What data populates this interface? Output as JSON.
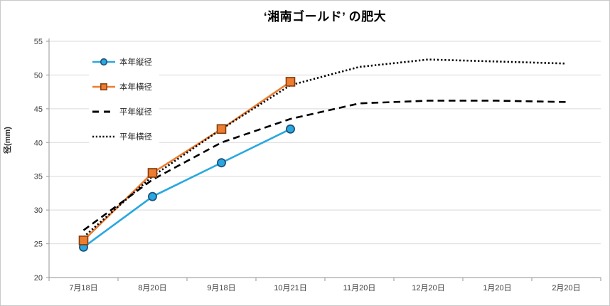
{
  "chart_data": {
    "type": "line",
    "title": "‘湘南ゴールド’ の肥大",
    "xlabel": "",
    "ylabel": "径(mm)",
    "ylim": [
      20,
      55
    ],
    "yticks": [
      20,
      25,
      30,
      35,
      40,
      45,
      50,
      55
    ],
    "grid": true,
    "legend_position": "upper-left-inside",
    "categories": [
      "7月18日",
      "8月20日",
      "9月18日",
      "10月21日",
      "11月20日",
      "12月20日",
      "1月20日",
      "2月20日"
    ],
    "series": [
      {
        "name": "本年縦径",
        "line_style": "solid",
        "marker": "circle",
        "color": "#29A8DF",
        "marker_border": "#1F4E79",
        "values": [
          24.5,
          32,
          37,
          42,
          null,
          null,
          null,
          null
        ]
      },
      {
        "name": "本年横径",
        "line_style": "solid",
        "marker": "square",
        "color": "#ED7D31",
        "marker_border": "#843C0C",
        "values": [
          25.5,
          35.5,
          42,
          49,
          null,
          null,
          null,
          null
        ]
      },
      {
        "name": "平年縦径",
        "line_style": "dashed",
        "marker": "none",
        "color": "#000000",
        "values": [
          27,
          34.5,
          40,
          43.5,
          45.8,
          46.2,
          46.2,
          46
        ]
      },
      {
        "name": "平年横径",
        "line_style": "dotted",
        "marker": "none",
        "color": "#000000",
        "values": [
          26,
          35,
          42,
          48.5,
          51.2,
          52.3,
          52,
          51.7
        ]
      }
    ]
  },
  "style": {
    "gridline_color": "#D9D9D9",
    "axis_color": "#A6A6A6",
    "tick_label_color": "#3f3f3f"
  }
}
